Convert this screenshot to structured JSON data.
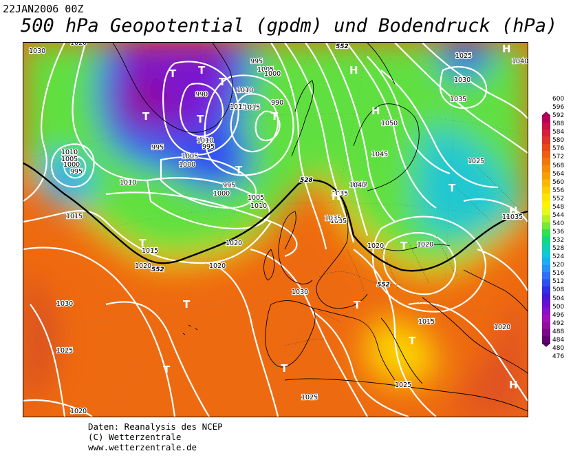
{
  "header": {
    "datestamp": "22JAN2006 00Z",
    "title": "500 hPa Geopotential (gpdm) und Bodendruck (hPa)"
  },
  "credits": {
    "line1": "Daten: Reanalysis des NCEP",
    "line2": "(C) Wetterzentrale",
    "line3": "www.wetterzentrale.de"
  },
  "legend": {
    "values": [
      "600",
      "596",
      "592",
      "588",
      "584",
      "580",
      "576",
      "572",
      "568",
      "564",
      "560",
      "556",
      "552",
      "548",
      "544",
      "540",
      "536",
      "532",
      "528",
      "524",
      "520",
      "516",
      "512",
      "508",
      "504",
      "500",
      "496",
      "492",
      "488",
      "484",
      "480",
      "476"
    ],
    "colors": [
      "#b8005a",
      "#c8104a",
      "#d8203a",
      "#e03428",
      "#e8481c",
      "#ee6010",
      "#f07808",
      "#f48c08",
      "#f8a000",
      "#f8b800",
      "#fcd000",
      "#fce400",
      "#fcf400",
      "#e8f818",
      "#b4f028",
      "#78e838",
      "#30e050",
      "#10d880",
      "#10d0b0",
      "#10c8d8",
      "#18b0f0",
      "#2890f8",
      "#3070f8",
      "#3050f0",
      "#3030e8",
      "#4818d8",
      "#6810d0",
      "#8810c8",
      "#a010b8",
      "#9010a0",
      "#780888",
      "#600070"
    ]
  },
  "map": {
    "pressure_labels": [
      {
        "text": "1030"
      },
      {
        "text": "1020"
      },
      {
        "text": "1005"
      },
      {
        "text": "1010"
      },
      {
        "text": "1000"
      },
      {
        "text": "995"
      },
      {
        "text": "990"
      },
      {
        "text": "1015"
      },
      {
        "text": "1000"
      },
      {
        "text": "995"
      },
      {
        "text": "1010"
      },
      {
        "text": "1015"
      },
      {
        "text": "1005"
      },
      {
        "text": "990"
      },
      {
        "text": "995"
      },
      {
        "text": "1000"
      },
      {
        "text": "995"
      },
      {
        "text": "1010"
      },
      {
        "text": "1005"
      },
      {
        "text": "1000"
      },
      {
        "text": "995"
      },
      {
        "text": "1000"
      },
      {
        "text": "1010"
      },
      {
        "text": "1005"
      },
      {
        "text": "1010"
      },
      {
        "text": "1015"
      },
      {
        "text": "1015"
      },
      {
        "text": "1020"
      },
      {
        "text": "1020"
      },
      {
        "text": "1020"
      },
      {
        "text": "1030"
      },
      {
        "text": "1025"
      },
      {
        "text": "1020"
      },
      {
        "text": "1030"
      },
      {
        "text": "1025"
      },
      {
        "text": "1025"
      },
      {
        "text": "1015"
      },
      {
        "text": "1020"
      },
      {
        "text": "1035"
      },
      {
        "text": "1040"
      },
      {
        "text": "1045"
      },
      {
        "text": "1050"
      },
      {
        "text": "1040"
      },
      {
        "text": "1025"
      },
      {
        "text": "1030"
      },
      {
        "text": "1035"
      },
      {
        "text": "1040"
      },
      {
        "text": "1025"
      },
      {
        "text": "1020"
      },
      {
        "text": "1020"
      },
      {
        "text": "1035"
      },
      {
        "text": "1035"
      },
      {
        "text": "1035"
      },
      {
        "text": "1040"
      }
    ],
    "height_labels": [
      "552",
      "552",
      "528",
      "552"
    ],
    "markers": [
      "T",
      "T",
      "T",
      "T",
      "T",
      "T",
      "T",
      "T",
      "T",
      "T",
      "T",
      "T",
      "T",
      "T",
      "T",
      "H",
      "H",
      "H",
      "H",
      "H",
      "H"
    ]
  }
}
